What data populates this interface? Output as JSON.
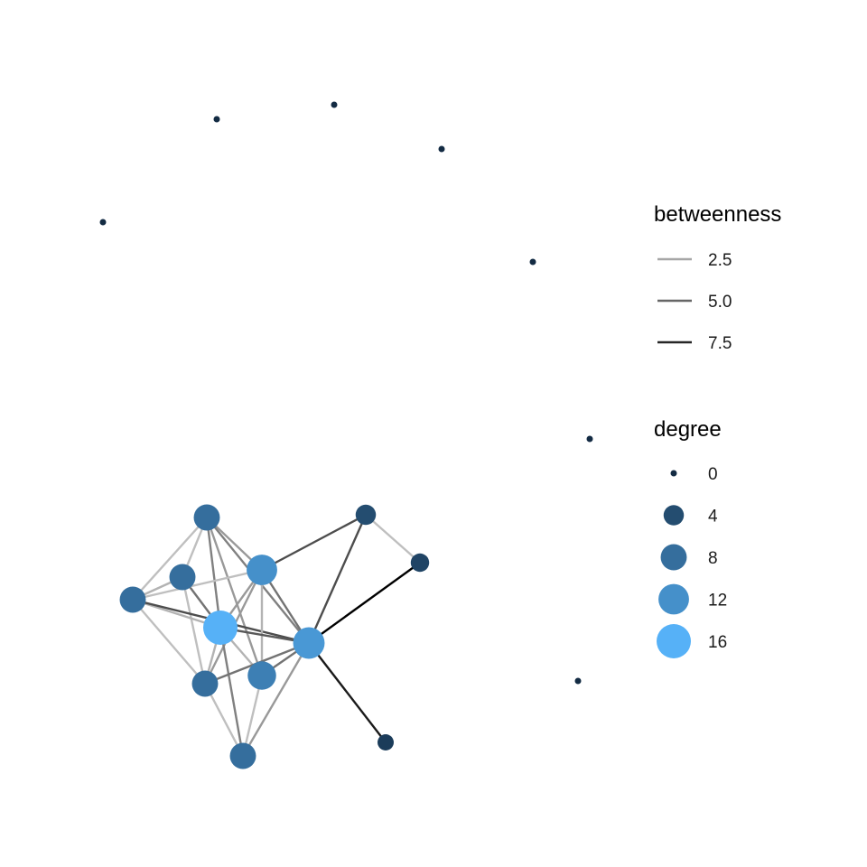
{
  "chart_data": {
    "type": "network",
    "nodes": [
      {
        "id": "a",
        "degree": 8
      },
      {
        "id": "b",
        "degree": 8
      },
      {
        "id": "c",
        "degree": 8
      },
      {
        "id": "d",
        "degree": 12
      },
      {
        "id": "e",
        "degree": 16
      },
      {
        "id": "f",
        "degree": 13
      },
      {
        "id": "g",
        "degree": 10
      },
      {
        "id": "h",
        "degree": 8
      },
      {
        "id": "i",
        "degree": 8
      },
      {
        "id": "j",
        "degree": 4
      },
      {
        "id": "k",
        "degree": 3
      },
      {
        "id": "l",
        "degree": 2
      },
      {
        "id": "iso1",
        "degree": 0
      },
      {
        "id": "iso2",
        "degree": 0
      },
      {
        "id": "iso3",
        "degree": 0
      },
      {
        "id": "iso4",
        "degree": 0
      },
      {
        "id": "iso5",
        "degree": 0
      },
      {
        "id": "iso6",
        "degree": 0
      },
      {
        "id": "iso7",
        "degree": 0
      }
    ],
    "edges": [
      {
        "source": "a",
        "target": "c",
        "betweenness": 1.5
      },
      {
        "source": "a",
        "target": "b",
        "betweenness": 1.5
      },
      {
        "source": "a",
        "target": "d",
        "betweenness": 3.0
      },
      {
        "source": "a",
        "target": "e",
        "betweenness": 4.0
      },
      {
        "source": "a",
        "target": "g",
        "betweenness": 3.0
      },
      {
        "source": "a",
        "target": "f",
        "betweenness": 4.0
      },
      {
        "source": "b",
        "target": "c",
        "betweenness": 2.0
      },
      {
        "source": "b",
        "target": "e",
        "betweenness": 4.5
      },
      {
        "source": "b",
        "target": "h",
        "betweenness": 1.5
      },
      {
        "source": "c",
        "target": "d",
        "betweenness": 1.5
      },
      {
        "source": "c",
        "target": "e",
        "betweenness": 2.0
      },
      {
        "source": "c",
        "target": "h",
        "betweenness": 1.5
      },
      {
        "source": "c",
        "target": "f",
        "betweenness": 6.0
      },
      {
        "source": "d",
        "target": "e",
        "betweenness": 3.0
      },
      {
        "source": "d",
        "target": "h",
        "betweenness": 3.0
      },
      {
        "source": "d",
        "target": "g",
        "betweenness": 2.0
      },
      {
        "source": "d",
        "target": "f",
        "betweenness": 4.5
      },
      {
        "source": "d",
        "target": "j",
        "betweenness": 6.0
      },
      {
        "source": "e",
        "target": "f",
        "betweenness": 5.5
      },
      {
        "source": "e",
        "target": "h",
        "betweenness": 2.0
      },
      {
        "source": "e",
        "target": "g",
        "betweenness": 2.0
      },
      {
        "source": "e",
        "target": "i",
        "betweenness": 4.0
      },
      {
        "source": "f",
        "target": "g",
        "betweenness": 4.5
      },
      {
        "source": "f",
        "target": "h",
        "betweenness": 4.5
      },
      {
        "source": "f",
        "target": "i",
        "betweenness": 3.0
      },
      {
        "source": "f",
        "target": "j",
        "betweenness": 6.0
      },
      {
        "source": "f",
        "target": "k",
        "betweenness": 9.0
      },
      {
        "source": "f",
        "target": "l",
        "betweenness": 8.0
      },
      {
        "source": "h",
        "target": "i",
        "betweenness": 1.5
      },
      {
        "source": "g",
        "target": "i",
        "betweenness": 1.5
      },
      {
        "source": "j",
        "target": "k",
        "betweenness": 1.5
      }
    ],
    "legend_betweenness": {
      "title": "betweenness",
      "entries": [
        {
          "label": "2.5",
          "value": 2.5
        },
        {
          "label": "5.0",
          "value": 5.0
        },
        {
          "label": "7.5",
          "value": 7.5
        }
      ]
    },
    "legend_degree": {
      "title": "degree",
      "entries": [
        {
          "label": "0",
          "value": 0
        },
        {
          "label": "4",
          "value": 4
        },
        {
          "label": "8",
          "value": 8
        },
        {
          "label": "12",
          "value": 12
        },
        {
          "label": "16",
          "value": 16
        }
      ]
    },
    "color_scale": {
      "low": "#132b43",
      "high": "#56b1f7"
    },
    "edge_color_scale": {
      "low": "#cccccc",
      "high": "#000000"
    },
    "legend_placement": "right"
  }
}
